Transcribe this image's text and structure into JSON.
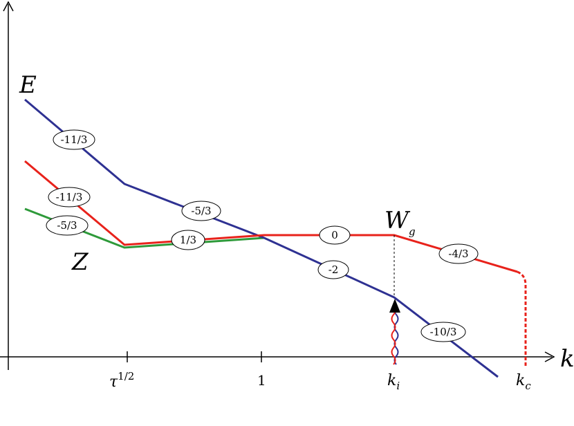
{
  "axes": {
    "y_label": "E",
    "x_label": "k"
  },
  "ticks": {
    "tau": {
      "base": "τ",
      "exponent": "1/2"
    },
    "one": "1",
    "ki": {
      "base": "k",
      "sub": "i"
    },
    "kc": {
      "base": "k",
      "sub": "c"
    }
  },
  "annotations": {
    "Z": "Z",
    "Wg": {
      "base": "W",
      "sub": "g"
    }
  },
  "colors": {
    "blue": "#2e3192",
    "red": "#e8221b",
    "green": "#2e9a3a",
    "axis": "#000000"
  },
  "slope_labels": {
    "blue_1": "-11/3",
    "blue_2": "-5/3",
    "blue_3": "-2",
    "blue_4": "-10/3",
    "red_1": "-11/3",
    "red_2": "1/3",
    "red_3": "0",
    "red_4": "-4/3",
    "green_1": "-5/3"
  }
}
